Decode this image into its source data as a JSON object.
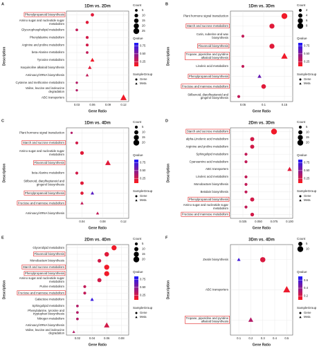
{
  "chart_data": [
    {
      "type": "dot",
      "label": "A",
      "title": "1Dm vs. 2Dm",
      "xlabel": "Gene Ratio",
      "ylabel": "Description",
      "categories": [
        "Phenylpropanoid biosynthesis",
        "Amino sugar and nucleotide sugar metabolism",
        "Glycerophospholipid metabolism",
        "Phenylalanine metabolism",
        "Arginine and proline metabolism",
        "beta-Alanine metabolism",
        "Tyrosine metabolism",
        "Isoquinoline alkaloid biosynthesis",
        "Aminoacyl-tRNA biosynthesis",
        "Cysteine and methionine metabolism",
        "Valine, leucine and isoleucine degradation",
        "ABC transporters"
      ],
      "boxed": [
        0
      ],
      "xlim": [
        0.01,
        0.13
      ],
      "xticks": [
        0.03,
        0.06,
        0.09,
        0.12
      ],
      "size_legend_title": "Count",
      "size_ticks": [
        5,
        10,
        15,
        20,
        25
      ],
      "color_legend_title": "Qvalue",
      "qlim": [
        0.1,
        0.85
      ],
      "qticks": [
        0.25,
        {
          "value": 0.5,
          "label": "0.50"
        },
        0.75
      ],
      "qcolors": [
        "#ff1a1a",
        "#1a1aff"
      ],
      "legend_title": "SampleGroup",
      "series": [
        {
          "name": "Gene",
          "shape": "circle",
          "values": [
            0.06,
            0.05,
            0.03,
            0.05,
            0.05,
            0.05,
            null,
            null,
            null,
            0.03,
            0.03,
            null
          ],
          "counts": [
            8,
            7,
            5,
            6,
            6,
            5,
            null,
            null,
            null,
            4,
            4,
            null
          ],
          "qvalues": [
            0.2,
            0.2,
            0.3,
            0.25,
            0.25,
            0.3,
            null,
            null,
            null,
            0.35,
            0.35,
            null
          ]
        },
        {
          "name": "Meta",
          "shape": "triangle",
          "values": [
            null,
            null,
            null,
            null,
            null,
            null,
            0.06,
            0.055,
            0.05,
            null,
            null,
            0.12
          ],
          "counts": [
            null,
            null,
            null,
            null,
            null,
            null,
            10,
            8,
            6,
            null,
            null,
            24
          ],
          "qvalues": [
            null,
            null,
            null,
            null,
            null,
            null,
            0.15,
            0.2,
            0.3,
            null,
            null,
            0.15
          ]
        }
      ]
    },
    {
      "type": "dot",
      "label": "B",
      "title": "1Dm vs. 3Dm",
      "xlabel": "Gene Ratio",
      "ylabel": "Description",
      "categories": [
        "Plant hormone signal transduction",
        "Starch and sucrose metabolism",
        "Cutin, suberine and wax biosynthesis",
        "Flavonoid biosynthesis",
        "Tropane, piperidine and pyridine alkaloid biosynthesis",
        "Linoleic acid metabolism",
        "Phenylpropanoid biosynthesis",
        "Fructose and mannose metabolism",
        "Stilbenoid, diarylheptanoid and gingerol biosynthesis"
      ],
      "boxed": [
        1,
        3,
        4,
        6,
        7
      ],
      "xlim": [
        0.02,
        0.17
      ],
      "xticks": [
        0.05,
        0.1,
        0.15
      ],
      "size_legend_title": "Count",
      "size_ticks": [
        2,
        4,
        6,
        8
      ],
      "color_legend_title": "Qvalue",
      "qlim": [
        0.1,
        0.85
      ],
      "qticks": [
        0.25,
        {
          "value": 0.5,
          "label": "0.50"
        },
        0.75
      ],
      "qcolors": [
        "#ff1a1a",
        "#1a1aff"
      ],
      "legend_title": "SampleGroup",
      "series": [
        {
          "name": "Gene",
          "shape": "circle",
          "values": [
            0.15,
            0.12,
            0.05,
            0.12,
            null,
            0.05,
            null,
            0.1,
            0.04
          ],
          "counts": [
            8,
            6,
            2,
            6,
            null,
            2,
            null,
            5,
            2
          ],
          "qvalues": [
            0.15,
            0.2,
            0.3,
            0.2,
            null,
            0.3,
            null,
            0.2,
            0.3
          ]
        },
        {
          "name": "Meta",
          "shape": "triangle",
          "values": [
            null,
            null,
            null,
            null,
            0.15,
            null,
            0.09,
            null,
            null
          ],
          "counts": [
            null,
            null,
            null,
            null,
            8,
            null,
            3,
            null,
            null
          ],
          "qvalues": [
            null,
            null,
            null,
            null,
            0.15,
            null,
            0.6,
            null,
            null
          ]
        }
      ]
    },
    {
      "type": "dot",
      "label": "C",
      "title": "1Dm vs. 4Dm",
      "xlabel": "Gene Ratio",
      "ylabel": "Description",
      "categories": [
        "Plant hormone signal transduction",
        "Starch and sucrose metabolism",
        "Amino sugar and nucleotide sugar metabolism",
        "Flavonoid biosynthesis",
        "beta-Alanine metabolism",
        "Stilbenoid, diarylheptanoid and gingerol biosynthesis",
        "Phenylpropanoid biosynthesis",
        "Fructose and mannose metabolism",
        "Aminoacyl-tRNA biosynthesis"
      ],
      "boxed": [
        1,
        3,
        6,
        7
      ],
      "xlim": [
        0.01,
        0.13
      ],
      "xticks": [
        0.04,
        0.08,
        0.12
      ],
      "size_legend_title": "Count",
      "size_ticks": [
        5,
        10,
        15,
        20
      ],
      "color_legend_title": "Qvalue",
      "qlim": [
        0.1,
        0.85
      ],
      "qticks": [
        0.25,
        {
          "value": 0.5,
          "label": "0.50"
        },
        0.75
      ],
      "qcolors": [
        "#ff1a1a",
        "#1a1aff"
      ],
      "legend_title": "SampleGroup",
      "series": [
        {
          "name": "Gene",
          "shape": "circle",
          "values": [
            0.02,
            0.03,
            0.04,
            null,
            0.03,
            0.04,
            0.04,
            null,
            null
          ],
          "counts": [
            3,
            5,
            8,
            null,
            5,
            7,
            6,
            null,
            null
          ],
          "qvalues": [
            0.35,
            0.25,
            0.2,
            null,
            0.25,
            0.2,
            0.2,
            null,
            null
          ]
        },
        {
          "name": "Meta",
          "shape": "triangle",
          "values": [
            null,
            null,
            null,
            0.09,
            null,
            null,
            0.06,
            0.04,
            0.07
          ],
          "counts": [
            null,
            null,
            null,
            15,
            null,
            null,
            6,
            5,
            5
          ],
          "qvalues": [
            null,
            null,
            null,
            0.2,
            null,
            null,
            0.65,
            0.3,
            0.3
          ]
        }
      ]
    },
    {
      "type": "dot",
      "label": "D",
      "title": "2Dm vs. 3Dm",
      "xlabel": "Gene Ratio",
      "ylabel": "Description",
      "categories": [
        "Starch and sucrose metabolism",
        "alpha-Linolenic acid metabolism",
        "Arginine and proline metabolism",
        "Sphingolipid metabolism",
        "Cyanoamino acid metabolism",
        "ABC transporters",
        "Linoleic acid metabolism",
        "Monobactam biosynthesis",
        "Betalain biosynthesis",
        "Phenylpropanoid biosynthesis",
        "Amino sugar and nucleotide sugar metabolism",
        "Fructose and mannose metabolism"
      ],
      "boxed": [
        0,
        9,
        11
      ],
      "xlim": [
        0.005,
        0.105
      ],
      "xticks": [
        0.025,
        {
          "value": 0.05,
          "label": "0.050"
        },
        0.075,
        {
          "value": 0.1,
          "label": "0.100"
        }
      ],
      "size_legend_title": "Count",
      "size_ticks": [
        5,
        10,
        15,
        20
      ],
      "color_legend_title": "Qvalue",
      "qlim": [
        0.1,
        0.85
      ],
      "qticks": [
        0.25,
        {
          "value": 0.5,
          "label": "0.50"
        },
        0.75
      ],
      "qcolors": [
        "#ff1a1a",
        "#1a1aff"
      ],
      "legend_title": "SampleGroup",
      "series": [
        {
          "name": "Gene",
          "shape": "circle",
          "values": [
            0.075,
            0.04,
            0.04,
            0.03,
            0.03,
            null,
            0.03,
            0.03,
            0.03,
            0.04,
            0.03,
            0.04
          ],
          "counts": [
            20,
            10,
            10,
            5,
            5,
            null,
            5,
            5,
            5,
            10,
            5,
            8
          ],
          "qvalues": [
            0.15,
            0.25,
            0.25,
            0.3,
            0.3,
            null,
            0.3,
            0.3,
            0.3,
            0.25,
            0.3,
            0.25
          ]
        },
        {
          "name": "Meta",
          "shape": "triangle",
          "values": [
            null,
            null,
            null,
            null,
            null,
            0.1,
            null,
            null,
            null,
            null,
            null,
            null
          ],
          "counts": [
            null,
            null,
            null,
            null,
            null,
            10,
            null,
            null,
            null,
            null,
            null,
            null
          ],
          "qvalues": [
            null,
            null,
            null,
            null,
            null,
            0.2,
            null,
            null,
            null,
            null,
            null,
            null
          ]
        }
      ]
    },
    {
      "type": "dot",
      "label": "E",
      "title": "2Dm vs. 4Dm",
      "xlabel": "Gene Ratio",
      "ylabel": "Description",
      "categories": [
        "Glycerolipid metabolism",
        "Flavonoid biosynthesis",
        "Monobactam biosynthesis",
        "Starch and sucrose metabolism",
        "Phenylpropanoid biosynthesis",
        "Amino sugar and nucleotide sugar metabolism",
        "Purine metabolism",
        "Fructose and mannose metabolism",
        "Galactose metabolism",
        "Sphingolipid metabolism",
        "Phenylalanine, tyrosine and tryptophan biosynthesis",
        "Nitrogen metabolism",
        "Aminoacyl-tRNA biosynthesis",
        "Valine, leucine and isoleucine degradation"
      ],
      "boxed": [
        1,
        3,
        4,
        7
      ],
      "xlim": [
        0.005,
        0.09
      ],
      "xticks": [
        0.02,
        0.04,
        0.06,
        0.08
      ],
      "size_legend_title": "Count",
      "size_ticks": [
        5,
        10,
        15,
        20
      ],
      "color_legend_title": "Qvalue",
      "qlim": [
        0.1,
        0.85
      ],
      "qticks": [
        0.25,
        {
          "value": 0.5,
          "label": "0.50"
        },
        0.75
      ],
      "qcolors": [
        "#ff1a1a",
        "#1a1aff"
      ],
      "legend_title": "SampleGroup",
      "series": [
        {
          "name": "Gene",
          "shape": "circle",
          "values": [
            0.07,
            0.06,
            0.05,
            0.06,
            0.06,
            0.05,
            0.03,
            0.03,
            null,
            0.02,
            0.02,
            0.02,
            null,
            null
          ],
          "counts": [
            15,
            12,
            8,
            15,
            15,
            10,
            5,
            5,
            null,
            4,
            4,
            4,
            null,
            null
          ],
          "qvalues": [
            0.15,
            0.2,
            0.25,
            0.15,
            0.15,
            0.25,
            0.3,
            0.3,
            null,
            0.35,
            0.35,
            0.35,
            null,
            null
          ]
        },
        {
          "name": "Meta",
          "shape": "triangle",
          "values": [
            null,
            null,
            null,
            null,
            null,
            null,
            null,
            null,
            0.04,
            null,
            null,
            null,
            0.06,
            0.015
          ],
          "counts": [
            null,
            null,
            null,
            null,
            null,
            null,
            null,
            null,
            6,
            null,
            null,
            null,
            15,
            4
          ],
          "qvalues": [
            null,
            null,
            null,
            null,
            null,
            null,
            null,
            null,
            0.75,
            null,
            null,
            null,
            0.25,
            0.35
          ]
        }
      ]
    },
    {
      "type": "dot",
      "label": "F",
      "title": "3Dm vs. 4Dm",
      "xlabel": "Gene Ratio",
      "ylabel": "Description",
      "categories": [
        "Zeatin biosynthesis",
        "ABC transporters",
        "Tropane, piperidine and pyridine alkaloid biosynthesis"
      ],
      "boxed": [
        2
      ],
      "xlim": [
        0.03,
        0.55
      ],
      "xticks": [
        0.1,
        0.2,
        0.3,
        0.4,
        0.5
      ],
      "size_legend_title": "Count",
      "size_ticks": [
        5,
        10
      ],
      "color_legend_title": "Qvalue",
      "qlim": [
        0.1,
        0.7
      ],
      "qticks": [
        0.2,
        0.4,
        0.6
      ],
      "qcolors": [
        "#ff1a1a",
        "#1a1aff"
      ],
      "legend_title": "SampleGroup",
      "series": [
        {
          "name": "Gene",
          "shape": "circle",
          "values": [
            0.3,
            null,
            null
          ],
          "counts": [
            8,
            null,
            null
          ],
          "qvalues": [
            0.2,
            null,
            null
          ]
        },
        {
          "name": "Meta",
          "shape": "triangle",
          "values": [
            0.1,
            0.5,
            0.2
          ],
          "counts": [
            3,
            12,
            6
          ],
          "qvalues": [
            0.6,
            0.15,
            0.3
          ]
        }
      ]
    }
  ]
}
